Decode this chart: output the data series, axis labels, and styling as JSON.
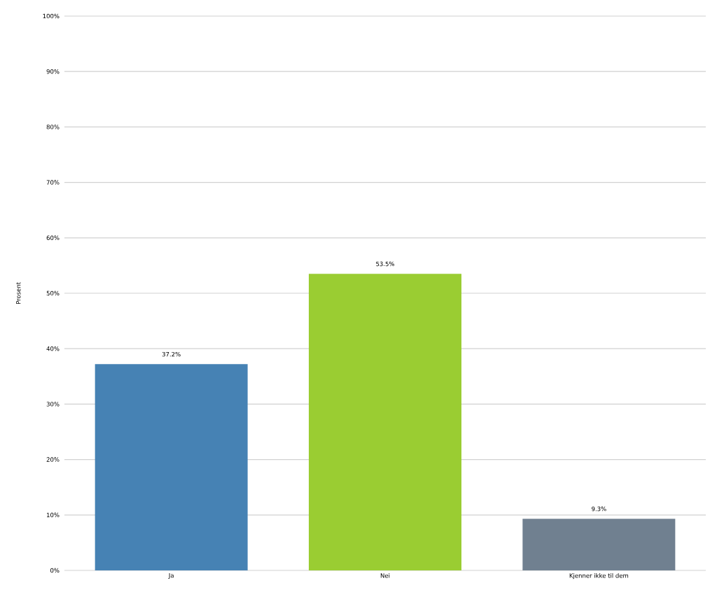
{
  "chart_data": {
    "type": "bar",
    "ylabel": "Prosent",
    "categories": [
      "Ja",
      "Nei",
      "Kjenner ikke til dem"
    ],
    "values": [
      37.2,
      53.5,
      9.3
    ],
    "colors": [
      "#4682b4",
      "#9acd32",
      "#708090"
    ],
    "value_labels": [
      "37.2%",
      "53.5%",
      "9.3%"
    ],
    "ylim": [
      0,
      100
    ],
    "yticks": [
      {
        "value": 0,
        "label": "0%"
      },
      {
        "value": 10,
        "label": "10%"
      },
      {
        "value": 20,
        "label": "20%"
      },
      {
        "value": 30,
        "label": "30%"
      },
      {
        "value": 40,
        "label": "40%"
      },
      {
        "value": 50,
        "label": "50%"
      },
      {
        "value": 60,
        "label": "60%"
      },
      {
        "value": 70,
        "label": "70%"
      },
      {
        "value": 80,
        "label": "80%"
      },
      {
        "value": 90,
        "label": "90%"
      },
      {
        "value": 100,
        "label": "100%"
      }
    ],
    "grid": "y"
  }
}
